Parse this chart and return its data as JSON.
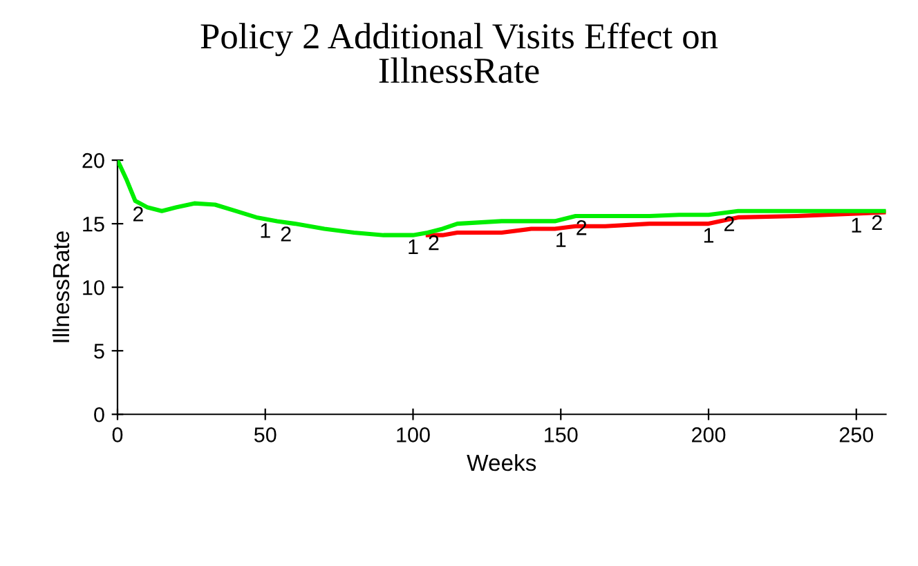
{
  "chart_data": {
    "type": "line",
    "title": "Policy 2 Additional Visits Effect on\nIllnessRate",
    "xlabel": "Weeks",
    "ylabel": "IllnessRate",
    "x": [
      0,
      3,
      6,
      10,
      15,
      20,
      26,
      33,
      40,
      47,
      54,
      60,
      70,
      80,
      90,
      100,
      105,
      110,
      115,
      130,
      140,
      148,
      155,
      165,
      180,
      190,
      200,
      210,
      230,
      250,
      260
    ],
    "series": [
      {
        "name": "1",
        "color": "#ff0000",
        "values": [
          null,
          null,
          null,
          null,
          null,
          null,
          null,
          null,
          null,
          null,
          null,
          null,
          null,
          null,
          null,
          null,
          14.1,
          14.1,
          14.3,
          14.3,
          14.6,
          14.6,
          14.8,
          14.8,
          15.0,
          15.0,
          15.0,
          15.5,
          15.6,
          15.8,
          15.9
        ]
      },
      {
        "name": "2",
        "color": "#00ee00",
        "values": [
          20,
          18.5,
          16.8,
          16.3,
          16.0,
          16.3,
          16.6,
          16.5,
          16.0,
          15.5,
          15.2,
          15.0,
          14.6,
          14.3,
          14.1,
          14.1,
          14.3,
          14.6,
          15.0,
          15.2,
          15.2,
          15.2,
          15.6,
          15.6,
          15.6,
          15.7,
          15.7,
          16.0,
          16.0,
          16.0,
          16.0
        ]
      }
    ],
    "xlim": [
      0,
      260
    ],
    "ylim": [
      0,
      20
    ],
    "xticks": [
      0,
      50,
      100,
      150,
      200,
      250
    ],
    "yticks": [
      0,
      5,
      10,
      15,
      20
    ],
    "grid": false,
    "legend": false
  }
}
